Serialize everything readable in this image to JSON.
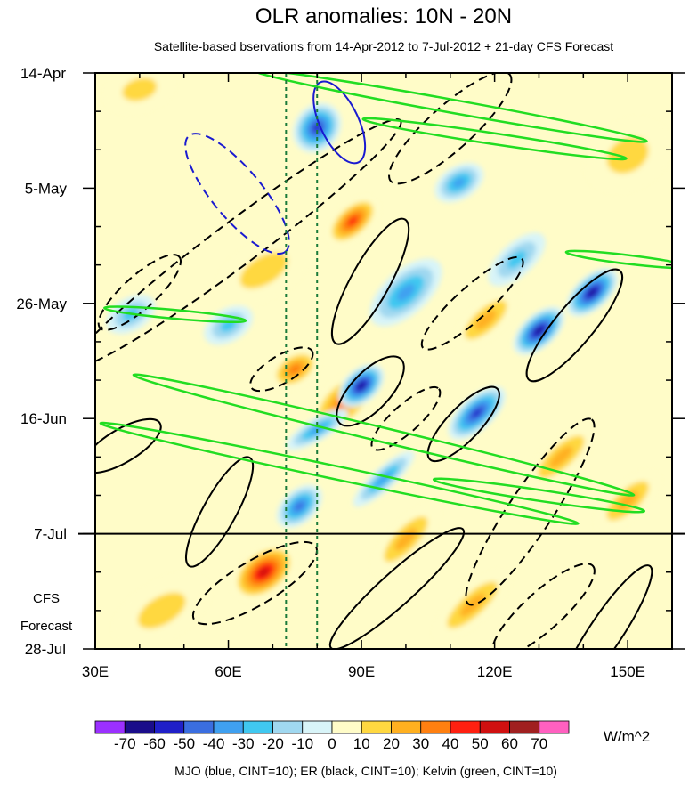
{
  "chart_data": {
    "type": "heatmap",
    "title": "OLR anomalies: 10N - 20N",
    "subtitle": "Satellite-based bservations from 14-Apr-2012 to 7-Jul-2012 + 21-day CFS Forecast",
    "x_range": [
      30,
      160
    ],
    "x_ticks": [
      {
        "value": 30,
        "label": "30E"
      },
      {
        "value": 60,
        "label": "60E"
      },
      {
        "value": 90,
        "label": "90E"
      },
      {
        "value": 120,
        "label": "120E"
      },
      {
        "value": 150,
        "label": "150E"
      }
    ],
    "y_range_days": [
      0,
      105
    ],
    "y_ticks": [
      {
        "day": 0,
        "label": "14-Apr"
      },
      {
        "day": 21,
        "label": "5-May"
      },
      {
        "day": 42,
        "label": "26-May"
      },
      {
        "day": 63,
        "label": "16-Jun"
      },
      {
        "day": 84,
        "label": "7-Jul"
      },
      {
        "day": 105,
        "label": "28-Jul"
      }
    ],
    "forecast_start_day": 84,
    "forecast_label_line1": "CFS",
    "forecast_label_line2": "Forecast",
    "vertical_reference_lines_lon": [
      73,
      80
    ],
    "colorbar": {
      "unit": "W/m^2",
      "levels": [
        -70,
        -60,
        -50,
        -40,
        -30,
        -20,
        -10,
        0,
        10,
        20,
        30,
        40,
        50,
        60,
        70
      ],
      "labels": [
        "-70",
        "-60",
        "-50",
        "-40",
        "-30",
        "-20",
        "-10",
        "0",
        "10",
        "20",
        "30",
        "40",
        "50",
        "60",
        "70"
      ],
      "colors": [
        "#9b30ff",
        "#1a0d8a",
        "#2020c8",
        "#3a6ee0",
        "#3fa0f0",
        "#40c8f0",
        "#a0d8f0",
        "#d8f4f8",
        "#fffcc8",
        "#ffd840",
        "#ffb020",
        "#ff8010",
        "#ff2010",
        "#d01010",
        "#a02020",
        "#ff60c0"
      ]
    },
    "anomaly_blobs": [
      {
        "lon": 68,
        "day": 91,
        "value": 60,
        "rx": 8,
        "ry": 4,
        "tilt": -0.25
      },
      {
        "lon": 88,
        "day": 27,
        "value": 50,
        "rx": 7,
        "ry": 3,
        "tilt": -0.3
      },
      {
        "lon": 86,
        "day": 60,
        "value": 40,
        "rx": 9,
        "ry": 4,
        "tilt": -0.3
      },
      {
        "lon": 75,
        "day": 54,
        "value": 40,
        "rx": 6,
        "ry": 3,
        "tilt": -0.2
      },
      {
        "lon": 115,
        "day": 97,
        "value": 30,
        "rx": 11,
        "ry": 3,
        "tilt": -0.3
      },
      {
        "lon": 118,
        "day": 45,
        "value": 30,
        "rx": 9,
        "ry": 3,
        "tilt": -0.3
      },
      {
        "lon": 135,
        "day": 70,
        "value": 30,
        "rx": 10,
        "ry": 3,
        "tilt": -0.3
      },
      {
        "lon": 100,
        "day": 85,
        "value": 30,
        "rx": 10,
        "ry": 3,
        "tilt": -0.35
      },
      {
        "lon": 68,
        "day": 36,
        "value": 20,
        "rx": 12,
        "ry": 5,
        "tilt": -0.2
      },
      {
        "lon": 40,
        "day": 3,
        "value": 20,
        "rx": 8,
        "ry": 4,
        "tilt": -0.1
      },
      {
        "lon": 150,
        "day": 15,
        "value": 20,
        "rx": 10,
        "ry": 6,
        "tilt": -0.2
      },
      {
        "lon": 150,
        "day": 78,
        "value": 30,
        "rx": 9,
        "ry": 3,
        "tilt": -0.3
      },
      {
        "lon": 45,
        "day": 98,
        "value": 20,
        "rx": 12,
        "ry": 5,
        "tilt": -0.2
      },
      {
        "lon": 80,
        "day": 10,
        "value": -60,
        "rx": 6,
        "ry": 4,
        "tilt": -0.4
      },
      {
        "lon": 90,
        "day": 57,
        "value": -70,
        "rx": 6,
        "ry": 3,
        "tilt": -0.3
      },
      {
        "lon": 130,
        "day": 47,
        "value": -70,
        "rx": 7,
        "ry": 3,
        "tilt": -0.3
      },
      {
        "lon": 142,
        "day": 40,
        "value": -70,
        "rx": 7,
        "ry": 3,
        "tilt": -0.3
      },
      {
        "lon": 116,
        "day": 62,
        "value": -60,
        "rx": 8,
        "ry": 3,
        "tilt": -0.3
      },
      {
        "lon": 76,
        "day": 79,
        "value": -50,
        "rx": 6,
        "ry": 3,
        "tilt": -0.3
      },
      {
        "lon": 100,
        "day": 40,
        "value": -40,
        "rx": 10,
        "ry": 4,
        "tilt": -0.3
      },
      {
        "lon": 112,
        "day": 20,
        "value": -40,
        "rx": 6,
        "ry": 3,
        "tilt": -0.2
      },
      {
        "lon": 80,
        "day": 65,
        "value": -40,
        "rx": 8,
        "ry": 2,
        "tilt": -0.2
      },
      {
        "lon": 60,
        "day": 46,
        "value": -30,
        "rx": 6,
        "ry": 3,
        "tilt": -0.2
      },
      {
        "lon": 95,
        "day": 74,
        "value": -40,
        "rx": 9,
        "ry": 2,
        "tilt": -0.3
      },
      {
        "lon": 125,
        "day": 34,
        "value": -30,
        "rx": 8,
        "ry": 3,
        "tilt": -0.3
      },
      {
        "lon": 38,
        "day": 44,
        "value": -30,
        "rx": 6,
        "ry": 3,
        "tilt": -0.2
      }
    ],
    "mjo_contours": [
      {
        "style": "solid",
        "lon": 85,
        "day": 9,
        "rx": 10,
        "ry": 3.5,
        "tilt": 0.7
      },
      {
        "style": "dashed",
        "lon": 62,
        "day": 22,
        "rx": 17,
        "ry": 4.5,
        "tilt": 0.4
      }
    ],
    "er_contours": [
      {
        "style": "solid",
        "lon": 92,
        "day": 58,
        "rx": 10,
        "ry": 3.5,
        "tilt": -0.35
      },
      {
        "style": "solid",
        "lon": 113,
        "day": 64,
        "rx": 11,
        "ry": 3,
        "tilt": -0.35
      },
      {
        "style": "solid",
        "lon": 138,
        "day": 46,
        "rx": 16,
        "ry": 3.5,
        "tilt": -0.4
      },
      {
        "style": "solid",
        "lon": 92,
        "day": 38,
        "rx": 16,
        "ry": 3.5,
        "tilt": -0.6
      },
      {
        "style": "solid",
        "lon": 58,
        "day": 80,
        "rx": 14,
        "ry": 3,
        "tilt": -0.6
      },
      {
        "style": "solid",
        "lon": 98,
        "day": 94,
        "rx": 20,
        "ry": 3,
        "tilt": -0.3
      },
      {
        "style": "solid",
        "lon": 145,
        "day": 102,
        "rx": 18,
        "ry": 3,
        "tilt": -0.5
      },
      {
        "style": "solid",
        "lon": 36,
        "day": 68,
        "rx": 10,
        "ry": 3,
        "tilt": -0.2
      },
      {
        "style": "dashed",
        "lon": 62,
        "day": 31,
        "rx": 46,
        "ry": 4,
        "tilt": -0.25
      },
      {
        "style": "dashed",
        "lon": 110,
        "day": 10,
        "rx": 18,
        "ry": 4,
        "tilt": -0.3
      },
      {
        "style": "dashed",
        "lon": 115,
        "day": 42,
        "rx": 15,
        "ry": 3,
        "tilt": -0.3
      },
      {
        "style": "dashed",
        "lon": 66,
        "day": 93,
        "rx": 16,
        "ry": 4,
        "tilt": -0.2
      },
      {
        "style": "dashed",
        "lon": 131,
        "day": 98,
        "rx": 15,
        "ry": 3.5,
        "tilt": -0.3
      },
      {
        "style": "dashed",
        "lon": 128,
        "day": 80,
        "rx": 25,
        "ry": 4,
        "tilt": -0.5
      },
      {
        "style": "dashed",
        "lon": 100,
        "day": 63,
        "rx": 10,
        "ry": 2.5,
        "tilt": -0.3
      },
      {
        "style": "dashed",
        "lon": 72,
        "day": 54,
        "rx": 8,
        "ry": 2.5,
        "tilt": -0.2
      },
      {
        "style": "dashed",
        "lon": 40,
        "day": 40,
        "rx": 12,
        "ry": 3,
        "tilt": -0.3
      }
    ],
    "kelvin_contours": [
      {
        "lon": 110,
        "day": 6,
        "rx": 45,
        "ry": 1.2,
        "tilt": 0.06
      },
      {
        "lon": 120,
        "day": 12,
        "rx": 30,
        "ry": 1,
        "tilt": 0.05
      },
      {
        "lon": 95,
        "day": 66,
        "rx": 58,
        "ry": 1.3,
        "tilt": 0.08
      },
      {
        "lon": 85,
        "day": 73,
        "rx": 55,
        "ry": 1.2,
        "tilt": 0.07
      },
      {
        "lon": 130,
        "day": 77,
        "rx": 24,
        "ry": 1,
        "tilt": 0.05
      },
      {
        "lon": 48,
        "day": 44,
        "rx": 16,
        "ry": 0.8,
        "tilt": 0.03
      },
      {
        "lon": 150,
        "day": 34,
        "rx": 14,
        "ry": 0.8,
        "tilt": 0.04
      }
    ],
    "footer": "MJO (blue, CINT=10); ER (black, CINT=10); Kelvin (green, CINT=10)"
  }
}
